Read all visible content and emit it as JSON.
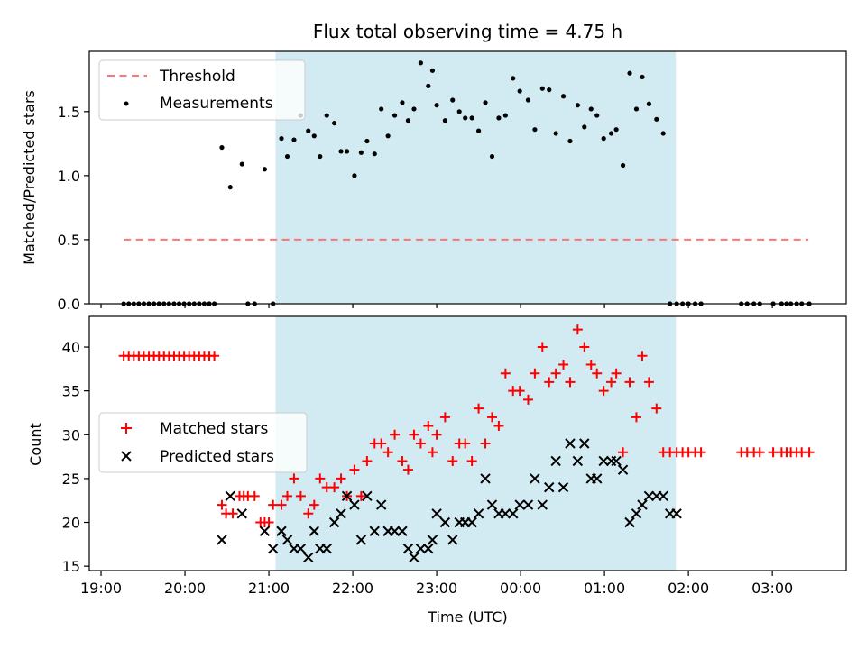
{
  "colors": {
    "shade": "#add8e6",
    "threshold": "#ff6666",
    "measurement": "#000000",
    "matched": "#ff0000",
    "predicted": "#000000"
  },
  "chart_data": [
    {
      "type": "scatter",
      "title": "Flux total observing time = 4.75 h",
      "xlabel": "",
      "ylabel": "Matched/Predicted stars",
      "ylim": [
        0,
        1.97
      ],
      "yticks": [
        "0.0",
        "0.5",
        "1.0",
        "1.5"
      ],
      "ytick_values": [
        0,
        0.5,
        1.0,
        1.5
      ],
      "xlim": [
        18.86,
        27.88
      ],
      "shaded_region": [
        21.08,
        25.85
      ],
      "legend": {
        "position": "top-left",
        "entries": [
          "Threshold",
          "Measurements"
        ]
      },
      "threshold": {
        "name": "Threshold",
        "x": [
          19.27,
          27.43
        ],
        "y": 0.5
      },
      "series": [
        {
          "name": "Measurements",
          "x": [
            19.27,
            19.33,
            19.39,
            19.45,
            19.51,
            19.57,
            19.63,
            19.69,
            19.75,
            19.81,
            19.87,
            19.93,
            19.99,
            20.05,
            20.11,
            20.17,
            20.23,
            20.29,
            20.35,
            20.44,
            20.54,
            20.68,
            20.75,
            20.83,
            20.95,
            21.05,
            21.15,
            21.22,
            21.3,
            21.38,
            21.47,
            21.54,
            21.61,
            21.69,
            21.78,
            21.86,
            21.93,
            22.02,
            22.1,
            22.17,
            22.26,
            22.34,
            22.42,
            22.5,
            22.59,
            22.66,
            22.73,
            22.81,
            22.9,
            22.95,
            23.0,
            23.1,
            23.19,
            23.27,
            23.34,
            23.42,
            23.5,
            23.58,
            23.66,
            23.74,
            23.82,
            23.91,
            23.99,
            24.09,
            24.17,
            24.26,
            24.34,
            24.42,
            24.51,
            24.59,
            24.68,
            24.76,
            24.84,
            24.91,
            24.99,
            25.08,
            25.14,
            25.22,
            25.3,
            25.38,
            25.45,
            25.53,
            25.62,
            25.7,
            25.78,
            25.86,
            25.93,
            26.0,
            26.08,
            26.15,
            26.63,
            26.7,
            26.78,
            26.85,
            27.01,
            27.11,
            27.17,
            27.22,
            27.29,
            27.35,
            27.44
          ],
          "y": [
            0,
            0,
            0,
            0,
            0,
            0,
            0,
            0,
            0,
            0,
            0,
            0,
            0,
            0,
            0,
            0,
            0,
            0,
            0,
            1.22,
            0.91,
            1.09,
            0,
            0,
            1.05,
            0,
            1.29,
            1.15,
            1.28,
            1.47,
            1.35,
            1.31,
            1.15,
            1.47,
            1.41,
            1.19,
            1.19,
            1.0,
            1.18,
            1.27,
            1.17,
            1.52,
            1.31,
            1.47,
            1.57,
            1.43,
            1.52,
            1.88,
            1.7,
            1.82,
            1.55,
            1.43,
            1.59,
            1.5,
            1.45,
            1.45,
            1.35,
            1.57,
            1.15,
            1.45,
            1.47,
            1.76,
            1.66,
            1.59,
            1.36,
            1.68,
            1.67,
            1.33,
            1.62,
            1.27,
            1.55,
            1.38,
            1.52,
            1.47,
            1.29,
            1.33,
            1.36,
            1.08,
            1.8,
            1.52,
            1.77,
            1.56,
            1.44,
            1.33,
            0,
            0,
            0,
            0,
            0,
            0,
            0,
            0,
            0,
            0,
            0,
            0,
            0,
            0,
            0,
            0,
            0
          ]
        }
      ]
    },
    {
      "type": "scatter",
      "xlabel": "Time (UTC)",
      "ylabel": "Count",
      "ylim": [
        14.5,
        43.5
      ],
      "yticks": [
        "15",
        "20",
        "25",
        "30",
        "35",
        "40"
      ],
      "ytick_values": [
        15,
        20,
        25,
        30,
        35,
        40
      ],
      "xlim": [
        18.86,
        27.88
      ],
      "xticks": [
        "19:00",
        "20:00",
        "21:00",
        "22:00",
        "23:00",
        "00:00",
        "01:00",
        "02:00",
        "03:00"
      ],
      "xtick_values": [
        19,
        20,
        21,
        22,
        23,
        24,
        25,
        26,
        27
      ],
      "shaded_region": [
        21.08,
        25.85
      ],
      "legend": {
        "position": "center-left",
        "entries": [
          "Matched stars",
          "Predicted stars"
        ]
      },
      "series": [
        {
          "name": "Matched stars",
          "marker": "plus",
          "x": [
            19.27,
            19.33,
            19.39,
            19.45,
            19.51,
            19.57,
            19.63,
            19.69,
            19.75,
            19.81,
            19.87,
            19.93,
            19.99,
            20.05,
            20.11,
            20.17,
            20.23,
            20.29,
            20.35,
            20.44,
            20.49,
            20.57,
            20.65,
            20.7,
            20.75,
            20.83,
            20.9,
            20.95,
            21.0,
            21.05,
            21.15,
            21.22,
            21.3,
            21.38,
            21.47,
            21.54,
            21.61,
            21.69,
            21.78,
            21.86,
            21.93,
            22.02,
            22.1,
            22.17,
            22.26,
            22.34,
            22.42,
            22.5,
            22.59,
            22.66,
            22.73,
            22.81,
            22.9,
            22.95,
            23.0,
            23.1,
            23.19,
            23.27,
            23.34,
            23.42,
            23.5,
            23.58,
            23.66,
            23.74,
            23.82,
            23.91,
            23.99,
            24.09,
            24.17,
            24.26,
            24.34,
            24.42,
            24.51,
            24.59,
            24.68,
            24.76,
            24.84,
            24.91,
            24.99,
            25.08,
            25.14,
            25.22,
            25.3,
            25.38,
            25.45,
            25.53,
            25.62,
            25.7,
            25.78,
            25.86,
            25.93,
            26.0,
            26.08,
            26.15,
            26.63,
            26.7,
            26.78,
            26.85,
            27.01,
            27.11,
            27.17,
            27.22,
            27.29,
            27.35,
            27.44
          ],
          "y": [
            39,
            39,
            39,
            39,
            39,
            39,
            39,
            39,
            39,
            39,
            39,
            39,
            39,
            39,
            39,
            39,
            39,
            39,
            39,
            22,
            21,
            21,
            23,
            23,
            23,
            23,
            20,
            20,
            20,
            22,
            22,
            23,
            25,
            23,
            21,
            22,
            25,
            24,
            24,
            25,
            23,
            26,
            23,
            27,
            29,
            29,
            28,
            30,
            27,
            26,
            30,
            29,
            31,
            28,
            30,
            32,
            27,
            29,
            29,
            27,
            33,
            29,
            32,
            31,
            37,
            35,
            35,
            34,
            37,
            40,
            36,
            37,
            38,
            36,
            42,
            40,
            38,
            37,
            35,
            36,
            37,
            28,
            36,
            32,
            39,
            36,
            33,
            28,
            28,
            28,
            28,
            28,
            28,
            28,
            28,
            28,
            28,
            28,
            28,
            28,
            28,
            28,
            28,
            28,
            28
          ]
        },
        {
          "name": "Predicted stars",
          "marker": "x",
          "x": [
            20.44,
            20.54,
            20.68,
            20.95,
            21.05,
            21.15,
            21.22,
            21.3,
            21.38,
            21.47,
            21.54,
            21.61,
            21.69,
            21.78,
            21.86,
            21.93,
            22.02,
            22.1,
            22.17,
            22.26,
            22.34,
            22.42,
            22.5,
            22.59,
            22.66,
            22.73,
            22.81,
            22.9,
            22.95,
            23.0,
            23.1,
            23.19,
            23.27,
            23.34,
            23.42,
            23.5,
            23.58,
            23.66,
            23.74,
            23.82,
            23.91,
            23.99,
            24.09,
            24.17,
            24.26,
            24.34,
            24.42,
            24.51,
            24.59,
            24.68,
            24.76,
            24.84,
            24.91,
            24.99,
            25.08,
            25.14,
            25.22,
            25.3,
            25.38,
            25.45,
            25.53,
            25.62,
            25.7,
            25.78,
            25.86
          ],
          "y": [
            18,
            23,
            21,
            19,
            17,
            19,
            18,
            17,
            17,
            16,
            19,
            17,
            17,
            20,
            21,
            23,
            22,
            18,
            23,
            19,
            22,
            19,
            19,
            19,
            17,
            16,
            17,
            17,
            18,
            21,
            20,
            18,
            20,
            20,
            20,
            21,
            25,
            22,
            21,
            21,
            21,
            22,
            22,
            25,
            22,
            24,
            27,
            24,
            29,
            27,
            29,
            25,
            25,
            27,
            27,
            27,
            26,
            20,
            21,
            22,
            23,
            23,
            23,
            21,
            21
          ]
        }
      ]
    }
  ]
}
